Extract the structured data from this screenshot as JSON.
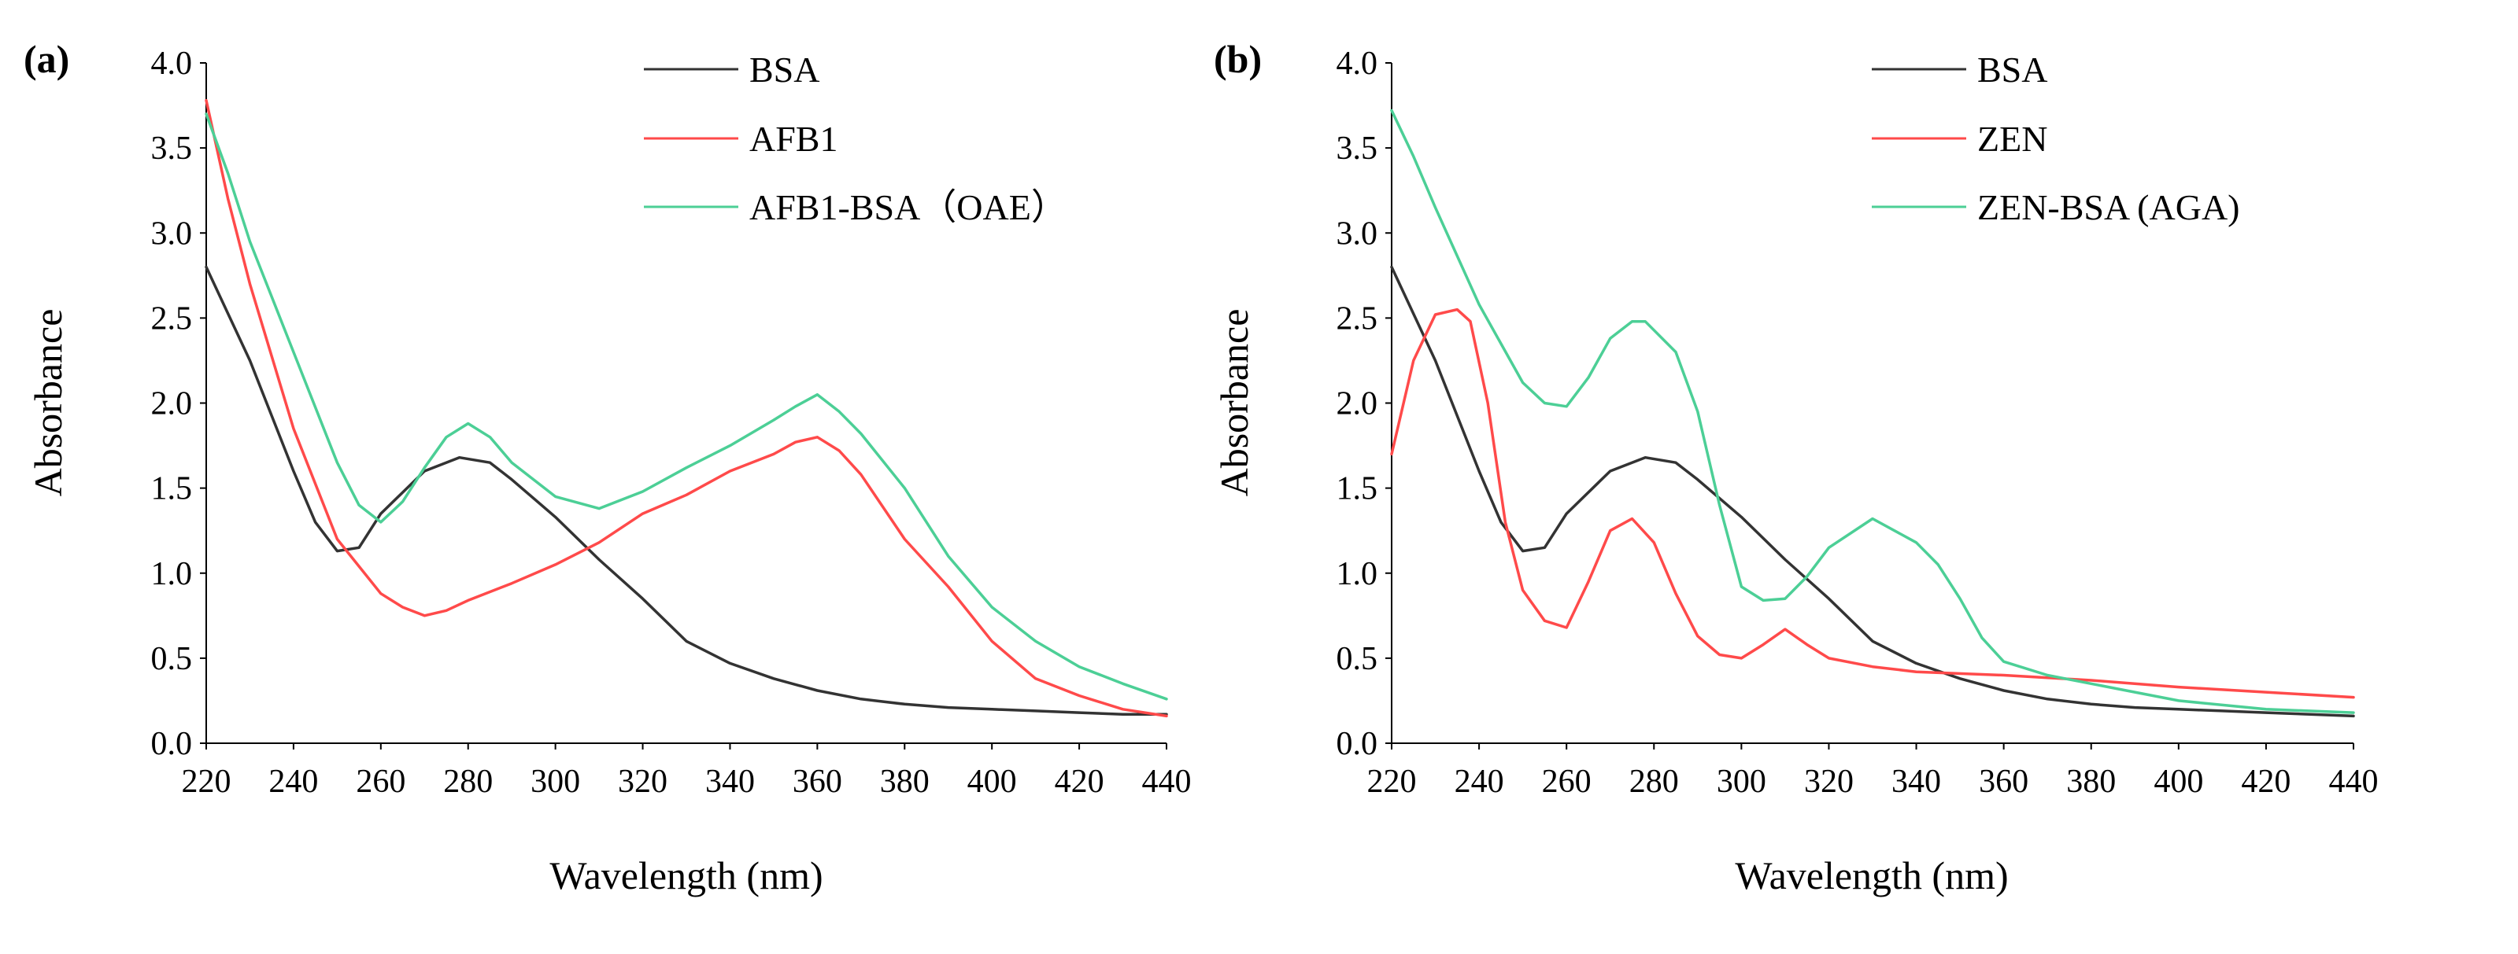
{
  "chart_data": [
    {
      "panel_label": "(a)",
      "type": "line",
      "xlabel": "Wavelength (nm)",
      "ylabel": "Absorbance",
      "xlim": [
        220,
        440
      ],
      "ylim": [
        0,
        4
      ],
      "xticks": [
        "220",
        "240",
        "260",
        "280",
        "300",
        "320",
        "340",
        "360",
        "380",
        "400",
        "420",
        "440"
      ],
      "yticks": [
        "0.0",
        "0.5",
        "1.0",
        "1.5",
        "2.0",
        "2.5",
        "3.0",
        "3.5",
        "4.0"
      ],
      "legend_position": "top-right",
      "series": [
        {
          "name": "BSA",
          "color": "#333333",
          "x": [
            220,
            230,
            240,
            245,
            250,
            255,
            260,
            270,
            278,
            285,
            290,
            300,
            310,
            320,
            330,
            340,
            350,
            360,
            370,
            380,
            390,
            400,
            410,
            420,
            430,
            440
          ],
          "y": [
            2.8,
            2.25,
            1.6,
            1.3,
            1.13,
            1.15,
            1.35,
            1.6,
            1.68,
            1.65,
            1.55,
            1.33,
            1.08,
            0.85,
            0.6,
            0.47,
            0.38,
            0.31,
            0.26,
            0.23,
            0.21,
            0.2,
            0.19,
            0.18,
            0.17,
            0.17
          ]
        },
        {
          "name": "AFB1",
          "color": "#ff4a4a",
          "x": [
            220,
            225,
            230,
            240,
            250,
            260,
            265,
            270,
            275,
            280,
            290,
            300,
            310,
            320,
            330,
            340,
            350,
            355,
            360,
            365,
            370,
            380,
            390,
            400,
            410,
            420,
            430,
            440
          ],
          "y": [
            3.78,
            3.2,
            2.7,
            1.85,
            1.2,
            0.88,
            0.8,
            0.75,
            0.78,
            0.84,
            0.94,
            1.05,
            1.18,
            1.35,
            1.46,
            1.6,
            1.7,
            1.77,
            1.8,
            1.72,
            1.58,
            1.2,
            0.92,
            0.6,
            0.38,
            0.28,
            0.2,
            0.16
          ]
        },
        {
          "name": "AFB1-BSA（OAE）",
          "color": "#4ccf96",
          "x": [
            220,
            225,
            230,
            240,
            250,
            255,
            260,
            265,
            270,
            275,
            280,
            285,
            290,
            300,
            310,
            320,
            330,
            340,
            350,
            355,
            360,
            365,
            370,
            380,
            390,
            400,
            410,
            420,
            430,
            440
          ],
          "y": [
            3.7,
            3.35,
            2.95,
            2.3,
            1.65,
            1.4,
            1.3,
            1.42,
            1.62,
            1.8,
            1.88,
            1.8,
            1.65,
            1.45,
            1.38,
            1.48,
            1.62,
            1.75,
            1.9,
            1.98,
            2.05,
            1.95,
            1.82,
            1.5,
            1.1,
            0.8,
            0.6,
            0.45,
            0.35,
            0.26
          ]
        }
      ]
    },
    {
      "panel_label": "(b)",
      "type": "line",
      "xlabel": "Wavelength (nm)",
      "ylabel": "Absorbance",
      "xlim": [
        220,
        440
      ],
      "ylim": [
        0,
        4
      ],
      "xticks": [
        "220",
        "240",
        "260",
        "280",
        "300",
        "320",
        "340",
        "360",
        "380",
        "400",
        "420",
        "440"
      ],
      "yticks": [
        "0.0",
        "0.5",
        "1.0",
        "1.5",
        "2.0",
        "2.5",
        "3.0",
        "3.5",
        "4.0"
      ],
      "legend_position": "top-right",
      "series": [
        {
          "name": "BSA",
          "color": "#333333",
          "x": [
            220,
            230,
            240,
            245,
            250,
            255,
            260,
            270,
            278,
            285,
            290,
            300,
            310,
            320,
            330,
            340,
            350,
            360,
            370,
            380,
            390,
            400,
            410,
            420,
            430,
            440
          ],
          "y": [
            2.8,
            2.25,
            1.6,
            1.3,
            1.13,
            1.15,
            1.35,
            1.6,
            1.68,
            1.65,
            1.55,
            1.33,
            1.08,
            0.85,
            0.6,
            0.47,
            0.38,
            0.31,
            0.26,
            0.23,
            0.21,
            0.2,
            0.19,
            0.18,
            0.17,
            0.16
          ]
        },
        {
          "name": "ZEN",
          "color": "#ff4a4a",
          "x": [
            220,
            225,
            230,
            235,
            238,
            242,
            246,
            250,
            255,
            260,
            265,
            270,
            275,
            280,
            285,
            290,
            295,
            300,
            305,
            310,
            315,
            320,
            330,
            340,
            360,
            380,
            400,
            420,
            440
          ],
          "y": [
            1.7,
            2.25,
            2.52,
            2.55,
            2.48,
            2.0,
            1.3,
            0.9,
            0.72,
            0.68,
            0.95,
            1.25,
            1.32,
            1.18,
            0.88,
            0.63,
            0.52,
            0.5,
            0.58,
            0.67,
            0.58,
            0.5,
            0.45,
            0.42,
            0.4,
            0.37,
            0.33,
            0.3,
            0.27
          ]
        },
        {
          "name": "ZEN-BSA (AGA)",
          "color": "#4ccf96",
          "x": [
            220,
            225,
            230,
            240,
            250,
            255,
            260,
            265,
            270,
            275,
            278,
            285,
            290,
            295,
            300,
            305,
            310,
            315,
            320,
            330,
            340,
            345,
            350,
            355,
            360,
            370,
            380,
            390,
            400,
            420,
            440
          ],
          "y": [
            3.72,
            3.45,
            3.15,
            2.58,
            2.12,
            2.0,
            1.98,
            2.15,
            2.38,
            2.48,
            2.48,
            2.3,
            1.95,
            1.4,
            0.92,
            0.84,
            0.85,
            0.98,
            1.15,
            1.32,
            1.18,
            1.05,
            0.85,
            0.62,
            0.48,
            0.4,
            0.35,
            0.3,
            0.25,
            0.2,
            0.18
          ]
        }
      ]
    }
  ]
}
